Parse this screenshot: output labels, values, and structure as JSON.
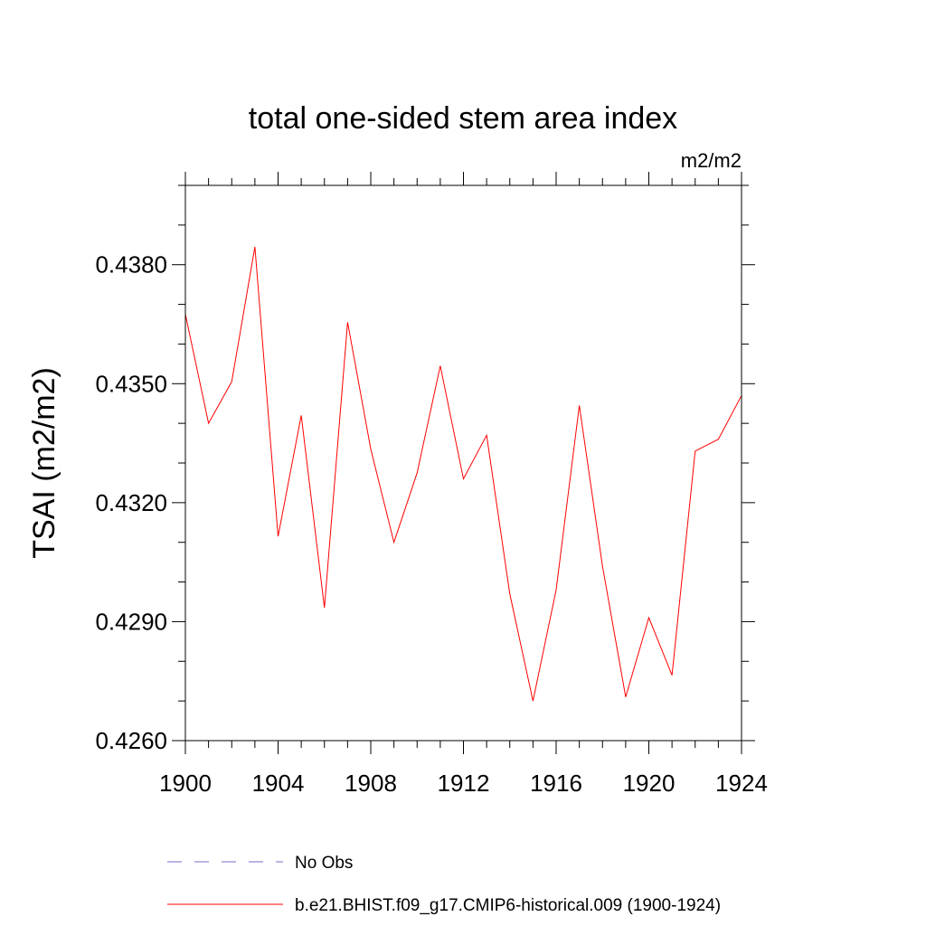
{
  "chart_data": {
    "type": "line",
    "title": "total one-sided stem area index",
    "units": "m2/m2",
    "ylabel": "TSAI  (m2/m2)",
    "xlabel": "",
    "xlim": [
      1900,
      1924
    ],
    "ylim": [
      0.426,
      0.44
    ],
    "xticks": [
      1900,
      1904,
      1908,
      1912,
      1916,
      1920,
      1924
    ],
    "xtick_labels": [
      "1900",
      "1904",
      "1908",
      "1912",
      "1916",
      "1920",
      "1924"
    ],
    "yticks": [
      0.426,
      0.429,
      0.432,
      0.435,
      0.438
    ],
    "ytick_labels": [
      "0.4260",
      "0.4290",
      "0.4320",
      "0.4350",
      "0.4380"
    ],
    "y_minor_step": 0.001,
    "x_minor_step": 1,
    "grid": false,
    "legend_position": "bottom",
    "series": [
      {
        "name": "b.e21.BHIST.f09_g17.CMIP6-historical.009 (1900-1924)",
        "color": "#ff0000",
        "style": "solid",
        "x": [
          1900,
          1901,
          1902,
          1903,
          1904,
          1905,
          1906,
          1907,
          1908,
          1909,
          1910,
          1911,
          1912,
          1913,
          1914,
          1915,
          1916,
          1917,
          1918,
          1919,
          1920,
          1921,
          1922,
          1923,
          1924
        ],
        "values": [
          0.43675,
          0.434,
          0.43505,
          0.43845,
          0.43115,
          0.4342,
          0.42935,
          0.43655,
          0.43335,
          0.431,
          0.43275,
          0.43545,
          0.4326,
          0.4337,
          0.4297,
          0.427,
          0.4298,
          0.43445,
          0.4304,
          0.4271,
          0.4291,
          0.42765,
          0.4333,
          0.4336,
          0.4347
        ]
      }
    ],
    "legend": [
      {
        "label": "No Obs",
        "color": "#7b68c8",
        "style": "dashed"
      },
      {
        "label": "b.e21.BHIST.f09_g17.CMIP6-historical.009 (1900-1924)",
        "color": "#ff0000",
        "style": "solid"
      }
    ]
  }
}
